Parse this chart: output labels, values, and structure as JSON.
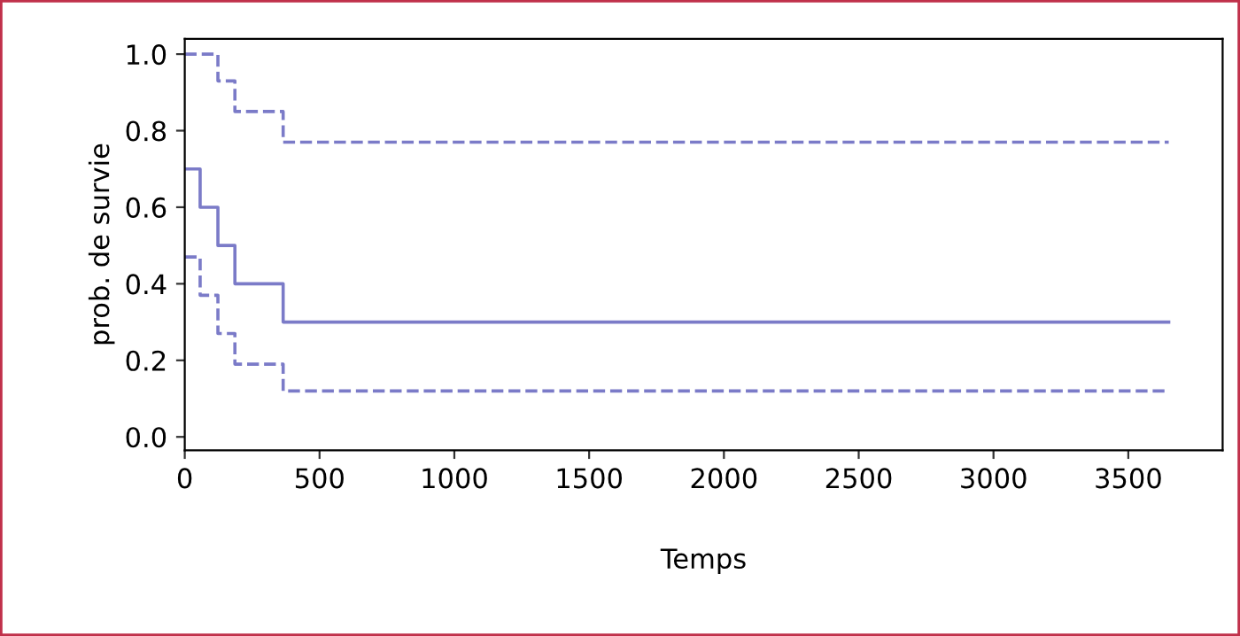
{
  "chart_data": {
    "type": "step",
    "xlabel": "Temps",
    "ylabel": "prob. de survie",
    "x": [
      0,
      57,
      123,
      186,
      365,
      3650
    ],
    "series": [
      {
        "color": "#7b7bc8",
        "line_style": "solid",
        "values": [
          0.7,
          0.6,
          0.5,
          0.4,
          0.3,
          0.3
        ]
      },
      {
        "color": "#7b7bc8",
        "line_style": "dashed",
        "values": [
          1.0,
          1.0,
          0.93,
          0.85,
          0.77,
          0.77
        ]
      },
      {
        "color": "#7b7bc8",
        "line_style": "dashed",
        "values": [
          0.47,
          0.37,
          0.27,
          0.19,
          0.12,
          0.12
        ]
      }
    ],
    "xlim": [
      0,
      3850
    ],
    "ylim": [
      -0.035,
      1.04
    ],
    "xticks": [
      0,
      500,
      1000,
      1500,
      2000,
      2500,
      3000,
      3500
    ],
    "yticks": [
      {
        "value": 0,
        "label": "0.0"
      },
      {
        "value": 0.2,
        "label": "0.2"
      },
      {
        "value": 0.4,
        "label": "0.4"
      },
      {
        "value": 0.6,
        "label": "0.6"
      },
      {
        "value": 0.8,
        "label": "0.8"
      },
      {
        "value": 1.0,
        "label": "1.0"
      }
    ],
    "grid": false,
    "legend": false
  }
}
